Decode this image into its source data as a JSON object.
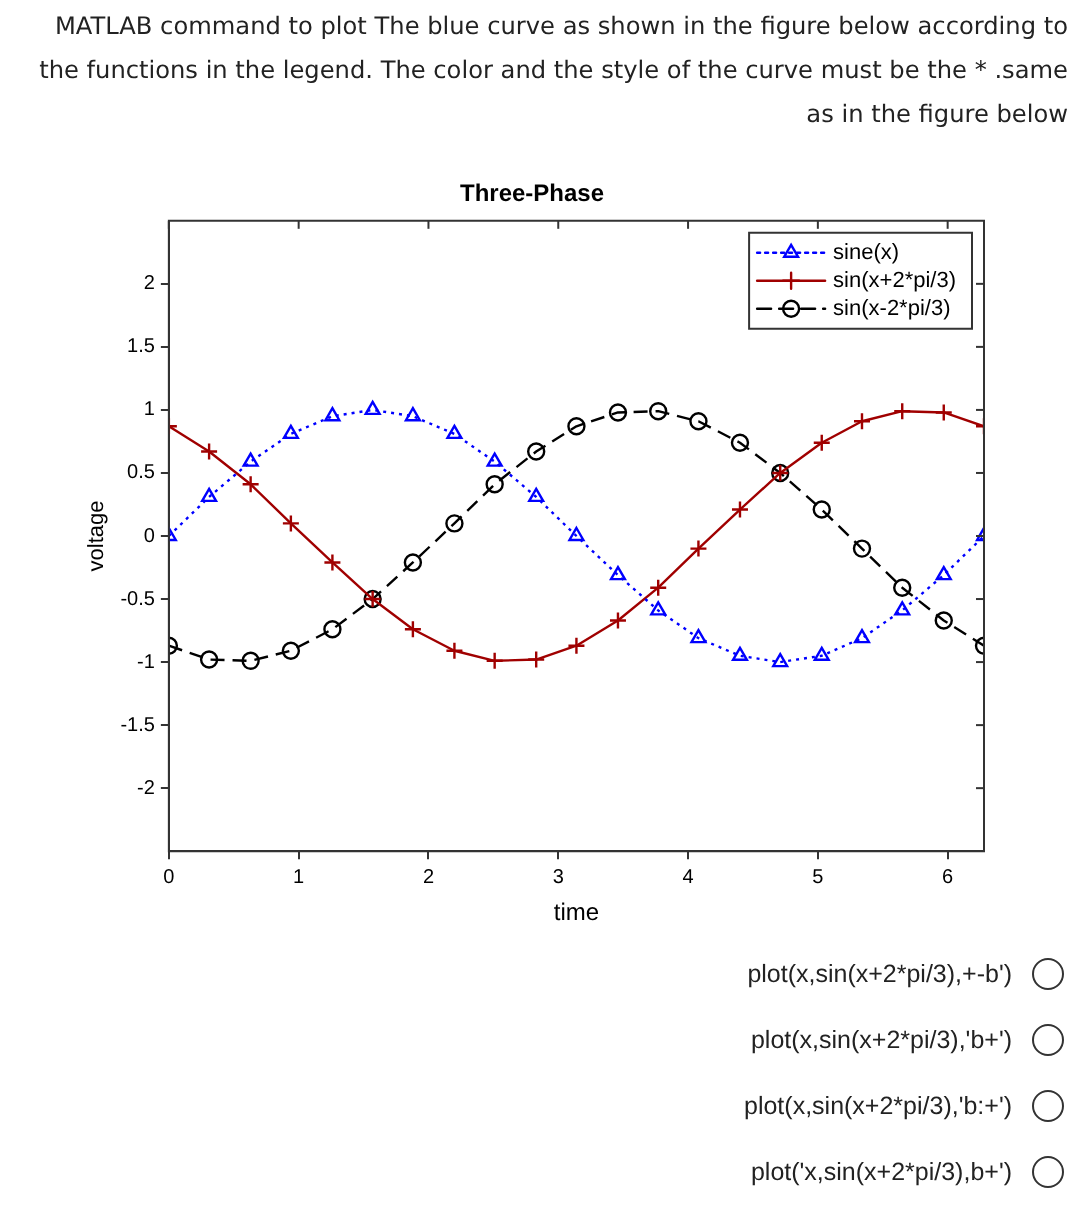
{
  "chart_data": {
    "type": "line",
    "title": "Three-Phase",
    "xlabel": "time",
    "ylabel": "voltage",
    "x": [
      0,
      0.31,
      0.63,
      0.94,
      1.26,
      1.57,
      1.88,
      2.2,
      2.51,
      2.83,
      3.14,
      3.46,
      3.77,
      4.08,
      4.4,
      4.71,
      5.03,
      5.34,
      5.65,
      5.97,
      6.28
    ],
    "series": [
      {
        "name": "sine(x)",
        "color": "#0000ff",
        "marker": "triangle",
        "line_style": "dotted",
        "values": [
          0,
          0.31,
          0.59,
          0.81,
          0.95,
          1,
          0.95,
          0.81,
          0.59,
          0.31,
          0,
          -0.31,
          -0.59,
          -0.81,
          -0.95,
          -1,
          -0.95,
          -0.81,
          -0.59,
          -0.31,
          0
        ]
      },
      {
        "name": "sin(x+2*pi/3)",
        "color": "#a00000",
        "marker": "cross",
        "line_style": "solid",
        "values": [
          0.87,
          0.67,
          0.41,
          0.1,
          -0.21,
          -0.5,
          -0.74,
          -0.91,
          -0.99,
          -0.98,
          -0.87,
          -0.67,
          -0.41,
          -0.1,
          0.21,
          0.5,
          0.74,
          0.91,
          0.99,
          0.98,
          0.87
        ]
      },
      {
        "name": "sin(x-2*pi/3)",
        "color": "#000000",
        "marker": "circle",
        "line_style": "dashed",
        "values": [
          -0.87,
          -0.98,
          -0.99,
          -0.91,
          -0.74,
          -0.5,
          -0.21,
          0.1,
          0.41,
          0.67,
          0.87,
          0.98,
          0.99,
          0.91,
          0.74,
          0.5,
          0.21,
          -0.1,
          -0.41,
          -0.67,
          -0.87
        ]
      }
    ],
    "xlim": [
      0,
      6.28
    ],
    "xticks": [
      0,
      1,
      2,
      3,
      4,
      5,
      6
    ],
    "ylim": [
      -2.5,
      2.5
    ],
    "yticks": [
      -2,
      -1.5,
      -1,
      -0.5,
      0,
      0.5,
      1,
      1.5,
      2
    ],
    "grid": false,
    "legend": "top right",
    "annotations": [
      "MATLAB command to plot The blue curve as shown in the figure below according to the functions in the legend. The color and the style of the curve must be the * .same as in the figure below",
      "plot(x,sin(x+2*pi/3),+-b')",
      "plot(x,sin(x+2*pi/3),'b+')",
      "plot(x,sin(x+2*pi/3),'b:+')",
      "plot('x,sin(x+2*pi/3),b+')"
    ]
  }
}
